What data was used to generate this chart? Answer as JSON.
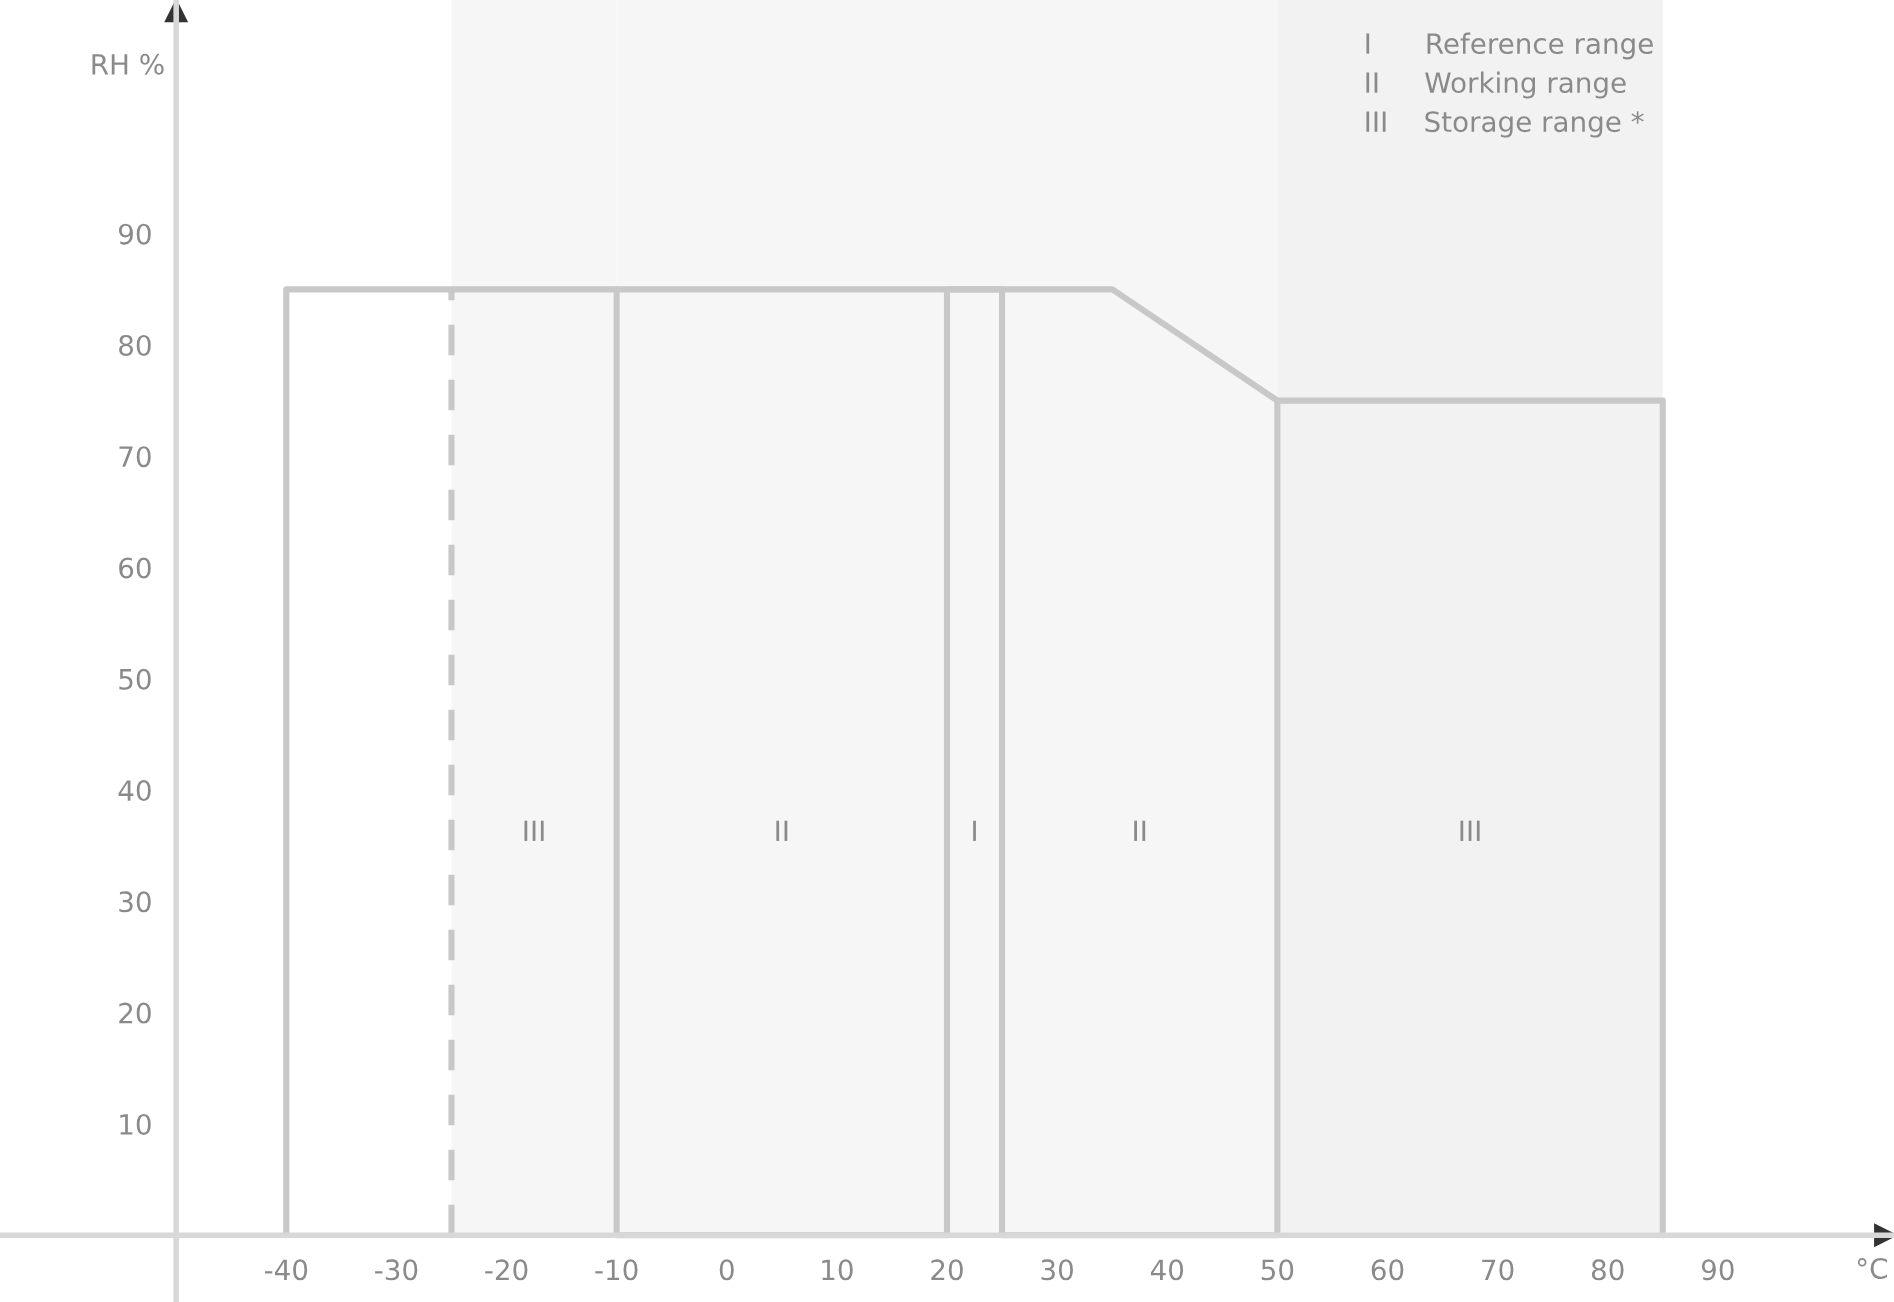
{
  "chart_data": {
    "type": "line",
    "xlabel": "°C",
    "ylabel": "RH %",
    "xlim": [
      -66,
      106
    ],
    "ylim": [
      -6,
      111
    ],
    "xticks": [
      -40,
      -30,
      -20,
      -10,
      0,
      10,
      20,
      30,
      40,
      50,
      60,
      70,
      80,
      90
    ],
    "yticks": [
      10,
      20,
      30,
      40,
      50,
      60,
      70,
      80,
      90
    ],
    "grid": false,
    "legend": false,
    "marker": "none",
    "series": [
      {
        "color": "#c8c8c8",
        "line_style": "solid",
        "x": [
          -40,
          -40,
          35,
          50,
          85,
          85
        ],
        "values": [
          0,
          85,
          85,
          75,
          75,
          0
        ]
      },
      {
        "color": "#c8c8c8",
        "line_style": "dashed",
        "x": [
          -25,
          -25
        ],
        "values": [
          0,
          85
        ]
      },
      {
        "color": "#c8c8c8",
        "line_style": "solid",
        "x": [
          -10,
          -10,
          20,
          20,
          25,
          25,
          50,
          50
        ],
        "values": [
          85,
          0,
          0,
          85,
          85,
          0,
          0,
          75
        ]
      }
    ],
    "bands": [
      {
        "axis": "x",
        "from": -25,
        "to": -10,
        "label": "III",
        "color": "#f6f6f6"
      },
      {
        "axis": "x",
        "from": -10,
        "to": 20,
        "label": "II",
        "color": "#f6f6f6"
      },
      {
        "axis": "x",
        "from": 20,
        "to": 25,
        "label": "I",
        "color": "#f6f6f6"
      },
      {
        "axis": "x",
        "from": 25,
        "to": 50,
        "label": "II",
        "color": "#f6f6f6"
      },
      {
        "axis": "x",
        "from": 50,
        "to": 85,
        "label": "III",
        "color": "#f2f2f2"
      }
    ],
    "annotations": [
      "I      Reference range",
      "II     Working range",
      "III    Storage range *"
    ]
  }
}
